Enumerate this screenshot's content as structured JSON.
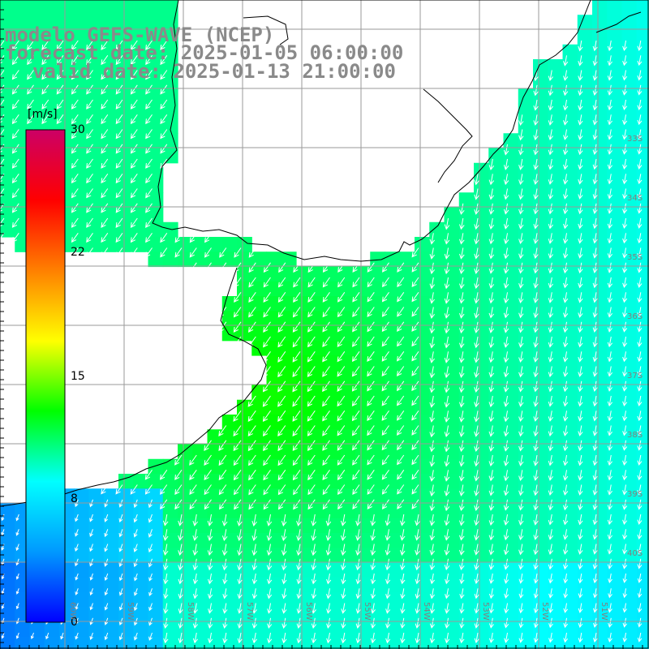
{
  "titles": {
    "model": "modelo GEFS-WAVE (NCEP)",
    "forecast": "forecast date: 2025-01-05 06:00:00",
    "valid": "valid date: 2025-01-13 21:00:00"
  },
  "colorbar": {
    "unit": "[m/s]",
    "ticks": [
      "30",
      "22",
      "15",
      "8",
      "0"
    ],
    "tick_values": [
      30,
      22,
      15,
      8,
      0
    ],
    "colors": [
      "#0000ff",
      "#0099ff",
      "#00ffff",
      "#00ff00",
      "#ffff00",
      "#ff8000",
      "#ff0000",
      "#cc0066"
    ]
  },
  "lat_labels": [
    "33S",
    "34S",
    "35S",
    "36S",
    "37S",
    "38S",
    "39S",
    "40S"
  ],
  "lon_labels": [
    "60W",
    "59W",
    "58W",
    "57W",
    "56W",
    "55W",
    "54W",
    "53W",
    "52W",
    "51W"
  ],
  "colors": {
    "land": "#ffffff",
    "grid": "#9a9a9a",
    "coast": "#000000",
    "arrow": "#ffffff"
  }
}
